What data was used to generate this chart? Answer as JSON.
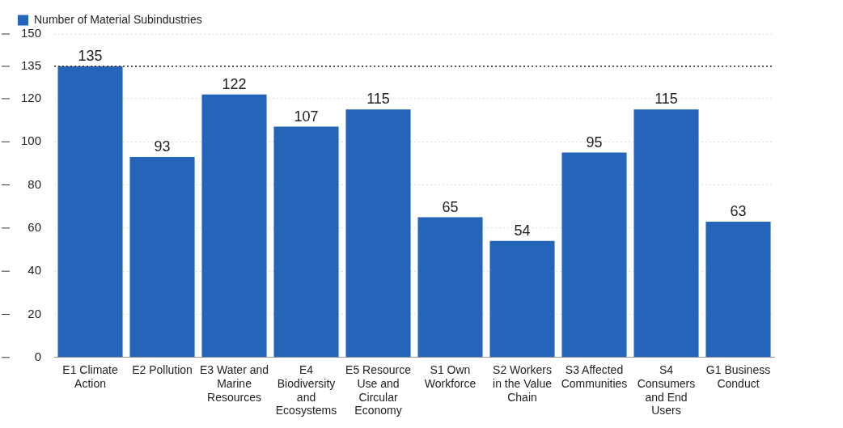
{
  "chart_data": {
    "type": "bar",
    "categories": [
      "E1 Climate Action",
      "E2 Pollution",
      "E3 Water and Marine Resources",
      "E4 Biodiversity and Ecosystems",
      "E5 Resource Use and Circular Economy",
      "S1 Own Workforce",
      "S2 Workers in the Value Chain",
      "S3 Affected Communities",
      "S4 Consumers and End Users",
      "G1 Business Conduct"
    ],
    "series": [
      {
        "name": "Number of Material Subindustries",
        "color": "#2464b9",
        "values": [
          135,
          93,
          122,
          107,
          115,
          65,
          54,
          95,
          115,
          63
        ]
      }
    ],
    "ylim": [
      0,
      150
    ],
    "yticks": [
      0,
      20,
      40,
      60,
      80,
      100,
      120,
      135,
      150
    ],
    "ref_lines": [
      {
        "axis": "y",
        "value": 135,
        "color": "#222222",
        "line_style": "dotted"
      }
    ],
    "grid": "y",
    "legend": "top left",
    "data_labels": true
  }
}
